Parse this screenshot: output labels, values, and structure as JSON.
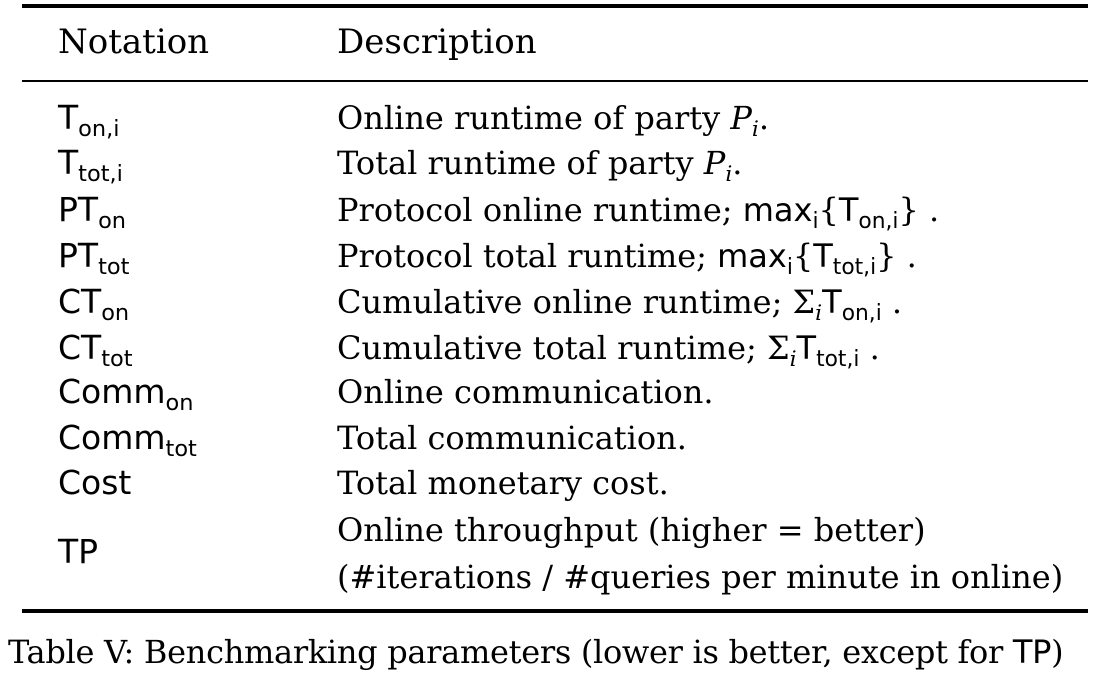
{
  "table": {
    "headers": {
      "notation": "Notation",
      "description": "Description"
    },
    "rows": [
      {
        "notation": {
          "base": "T",
          "sub": "on,i"
        },
        "description": {
          "prefix": "Online runtime of party ",
          "var": "P",
          "var_sub": "i",
          "suffix": "."
        }
      },
      {
        "notation": {
          "base": "T",
          "sub": "tot,i"
        },
        "description": {
          "prefix": "Total runtime of party ",
          "var": "P",
          "var_sub": "i",
          "suffix": "."
        }
      },
      {
        "notation": {
          "base": "PT",
          "sub": "on"
        },
        "description": {
          "prefix": "Protocol online runtime; ",
          "op": "max",
          "op_sub": "i",
          "open": "{",
          "inner": "T",
          "inner_sub": "on,i",
          "close": "}",
          "suffix": " ."
        }
      },
      {
        "notation": {
          "base": "PT",
          "sub": "tot"
        },
        "description": {
          "prefix": "Protocol total runtime; ",
          "op": "max",
          "op_sub": "i",
          "open": "{",
          "inner": "T",
          "inner_sub": "tot,i",
          "close": "}",
          "suffix": " ."
        }
      },
      {
        "notation": {
          "base": "CT",
          "sub": "on"
        },
        "description": {
          "prefix": "Cumulative online runtime; ",
          "sum": "Σ",
          "sum_sub": "i",
          "inner": "T",
          "inner_sub": "on,i",
          "suffix": " ."
        }
      },
      {
        "notation": {
          "base": "CT",
          "sub": "tot"
        },
        "description": {
          "prefix": "Cumulative total runtime; ",
          "sum": "Σ",
          "sum_sub": "i",
          "inner": "T",
          "inner_sub": "tot,i",
          "suffix": " ."
        }
      },
      {
        "notation": {
          "base": "Comm",
          "sub": "on"
        },
        "description": {
          "text": "Online communication."
        }
      },
      {
        "notation": {
          "base": "Comm",
          "sub": "tot"
        },
        "description": {
          "text": "Total communication."
        }
      },
      {
        "notation": {
          "base": "Cost",
          "sub": ""
        },
        "description": {
          "text": "Total monetary cost."
        }
      },
      {
        "notation": {
          "base": "TP",
          "sub": ""
        },
        "description": {
          "line1": "Online throughput (higher = better)",
          "line2": "(#iterations / #queries per minute in online)"
        }
      }
    ]
  },
  "caption": {
    "label": "Table V:",
    "text": " Benchmarking parameters (lower is better, except for ",
    "tp": "TP",
    "end": ")"
  }
}
